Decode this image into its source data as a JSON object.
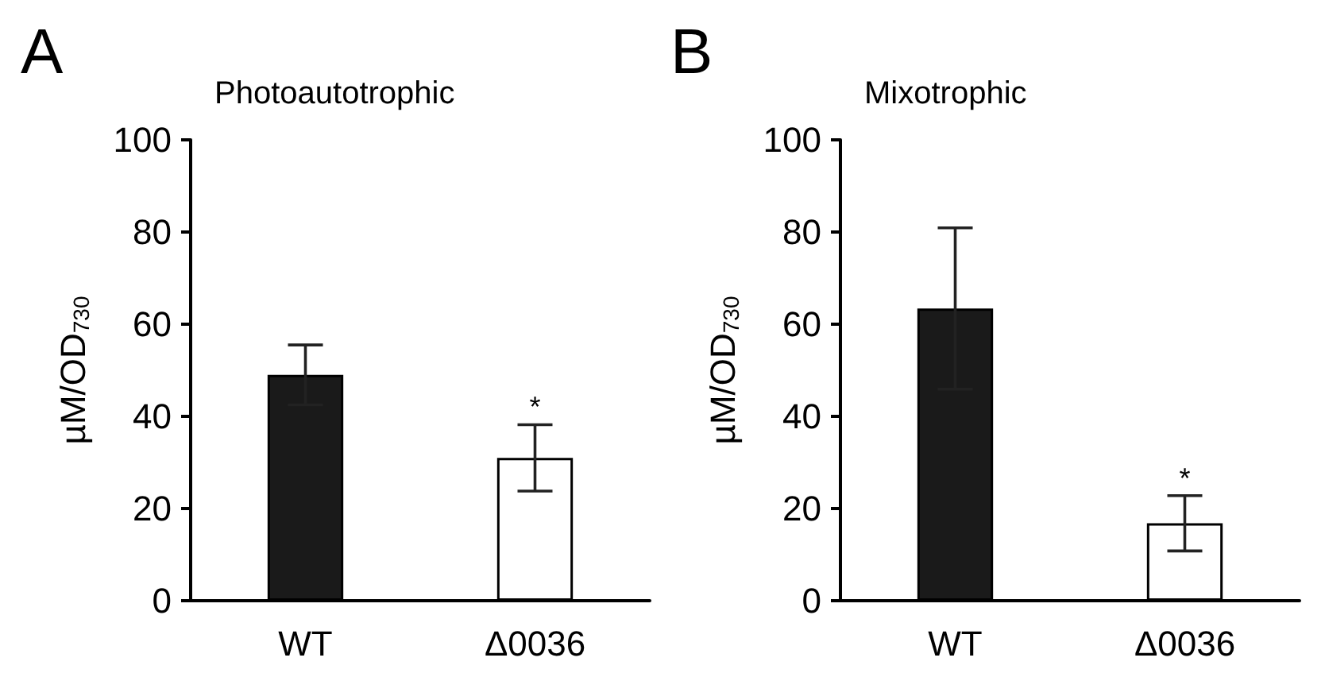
{
  "chart_data": [
    {
      "type": "bar",
      "title": "A",
      "subtitle": "Photoautotrophic",
      "ylabel": "µM/OD$_{730}$",
      "categories": [
        "WT",
        "Δ0036"
      ],
      "values": [
        49,
        31
      ],
      "colors": [
        "#1a1a1a",
        "#ffffff"
      ],
      "errors": [
        6.5,
        7.2
      ],
      "ylim": [
        0,
        100
      ],
      "yticks": [
        0,
        20,
        40,
        60,
        80,
        100
      ],
      "grid": false,
      "annotations": [
        {
          "text": "*",
          "x": "Δ0036",
          "y": 38.2
        }
      ]
    },
    {
      "type": "bar",
      "title": "B",
      "subtitle": "Mixotrophic",
      "ylabel": "µM/OD$_{730}$",
      "categories": [
        "WT",
        "Δ0036"
      ],
      "values": [
        63.4,
        16.8
      ],
      "colors": [
        "#1a1a1a",
        "#ffffff"
      ],
      "errors": [
        17.5,
        6
      ],
      "ylim": [
        0,
        100
      ],
      "yticks": [
        0,
        20,
        40,
        60,
        80,
        100
      ],
      "grid": false,
      "annotations": [
        {
          "text": "*",
          "x": "Δ0036",
          "y": 22.8
        }
      ]
    }
  ]
}
